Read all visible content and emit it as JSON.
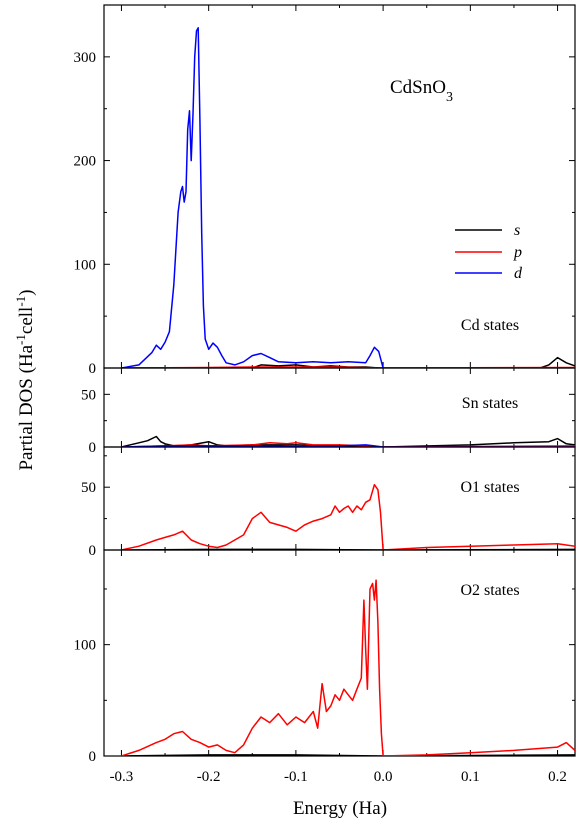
{
  "chart_data": {
    "type": "line",
    "title": "CdSnO3",
    "title_parts": [
      "CdSnO",
      "3"
    ],
    "xlabel": "Energy (Ha)",
    "ylabel": "Partial DOS (Ha-1cell-1)",
    "ylabel_parts": [
      "Partial DOS (Ha",
      "-1",
      "cell",
      "-1",
      ")"
    ],
    "xlim": [
      -0.32,
      0.22
    ],
    "xticks": [
      -0.3,
      -0.2,
      -0.1,
      0.0,
      0.1,
      0.2
    ],
    "xtick_labels": [
      "-0.3",
      "-0.2",
      "-0.1",
      "0.0",
      "0.1",
      "0.2"
    ],
    "legend": {
      "placement": "right, top panel",
      "entries": [
        {
          "label": "s",
          "color": "#000000"
        },
        {
          "label": "p",
          "color": "#ff0000"
        },
        {
          "label": "d",
          "color": "#0000ff"
        }
      ]
    },
    "panels": [
      {
        "label": "Cd states",
        "ylim": [
          0,
          350
        ],
        "yticks": [
          0,
          100,
          200,
          300
        ],
        "ytick_labels": [
          "0",
          "100",
          "200",
          "300"
        ],
        "series": [
          {
            "name": "s",
            "color": "#000000",
            "x": [
              -0.3,
              -0.15,
              -0.14,
              -0.12,
              -0.1,
              -0.08,
              -0.06,
              -0.04,
              -0.02,
              -0.005,
              0.0,
              0.18,
              0.19,
              0.2,
              0.21,
              0.22
            ],
            "y": [
              0,
              0,
              3,
              2,
              3,
              1,
              2,
              1,
              1,
              0,
              0,
              0,
              3,
              10,
              5,
              2
            ]
          },
          {
            "name": "p",
            "color": "#ff0000",
            "x": [
              -0.3,
              -0.2,
              -0.15,
              -0.1,
              -0.05,
              0.0,
              0.22
            ],
            "y": [
              0,
              0.5,
              1,
              1,
              1,
              0,
              0.5
            ]
          },
          {
            "name": "d",
            "color": "#0000ff",
            "x": [
              -0.3,
              -0.28,
              -0.265,
              -0.26,
              -0.255,
              -0.25,
              -0.245,
              -0.24,
              -0.235,
              -0.232,
              -0.23,
              -0.228,
              -0.226,
              -0.224,
              -0.222,
              -0.22,
              -0.218,
              -0.216,
              -0.214,
              -0.212,
              -0.21,
              -0.208,
              -0.206,
              -0.204,
              -0.2,
              -0.195,
              -0.19,
              -0.185,
              -0.18,
              -0.17,
              -0.16,
              -0.15,
              -0.14,
              -0.13,
              -0.12,
              -0.1,
              -0.08,
              -0.06,
              -0.04,
              -0.02,
              -0.015,
              -0.01,
              -0.005,
              0.0
            ],
            "y": [
              0,
              3,
              15,
              22,
              18,
              25,
              35,
              80,
              150,
              170,
              175,
              160,
              170,
              230,
              248,
              200,
              245,
              300,
              325,
              328,
              240,
              130,
              60,
              28,
              18,
              24,
              20,
              12,
              5,
              3,
              6,
              12,
              14,
              10,
              6,
              5,
              6,
              5,
              6,
              5,
              12,
              20,
              16,
              0
            ]
          }
        ]
      },
      {
        "label": "Sn states",
        "ylim": [
          0,
          75
        ],
        "yticks": [
          0,
          50
        ],
        "ytick_labels": [
          "0",
          "50"
        ],
        "series": [
          {
            "name": "s",
            "color": "#000000",
            "x": [
              -0.3,
              -0.28,
              -0.27,
              -0.26,
              -0.255,
              -0.25,
              -0.24,
              -0.22,
              -0.2,
              -0.19,
              -0.18,
              -0.15,
              -0.1,
              -0.05,
              0.0,
              0.1,
              0.15,
              0.19,
              0.2,
              0.21,
              0.22
            ],
            "y": [
              0,
              4,
              6,
              10,
              5,
              3,
              1,
              2,
              5,
              2,
              1,
              2,
              2,
              1,
              0,
              2,
              4,
              5,
              8,
              3,
              2
            ]
          },
          {
            "name": "p",
            "color": "#ff0000",
            "x": [
              -0.3,
              -0.25,
              -0.22,
              -0.2,
              -0.15,
              -0.13,
              -0.11,
              -0.1,
              -0.08,
              -0.05,
              -0.02,
              0.0,
              0.22
            ],
            "y": [
              0,
              1,
              2,
              1,
              2,
              4,
              3,
              4,
              2,
              2,
              1,
              0,
              1
            ]
          },
          {
            "name": "d",
            "color": "#0000ff",
            "x": [
              -0.3,
              -0.25,
              -0.2,
              -0.15,
              -0.1,
              -0.05,
              -0.02,
              -0.01,
              0.0,
              0.22
            ],
            "y": [
              0,
              1,
              1,
              1,
              0.5,
              1,
              2,
              1,
              0,
              0
            ]
          }
        ]
      },
      {
        "label": "O1 states",
        "ylim": [
          0,
          82
        ],
        "yticks": [
          0,
          50
        ],
        "ytick_labels": [
          "0",
          "50"
        ],
        "series": [
          {
            "name": "s",
            "color": "#000000",
            "x": [
              -0.3,
              -0.2,
              -0.1,
              0.0,
              0.22
            ],
            "y": [
              0,
              0.5,
              0.5,
              0,
              0.5
            ]
          },
          {
            "name": "p",
            "color": "#ff0000",
            "x": [
              -0.3,
              -0.28,
              -0.26,
              -0.25,
              -0.24,
              -0.23,
              -0.22,
              -0.21,
              -0.2,
              -0.19,
              -0.18,
              -0.17,
              -0.16,
              -0.15,
              -0.14,
              -0.13,
              -0.12,
              -0.11,
              -0.1,
              -0.09,
              -0.08,
              -0.07,
              -0.06,
              -0.055,
              -0.05,
              -0.045,
              -0.04,
              -0.035,
              -0.03,
              -0.025,
              -0.02,
              -0.015,
              -0.01,
              -0.006,
              -0.003,
              0.0,
              0.05,
              0.1,
              0.15,
              0.2,
              0.22
            ],
            "y": [
              0,
              3,
              8,
              10,
              12,
              15,
              8,
              5,
              3,
              2,
              4,
              8,
              12,
              25,
              30,
              22,
              20,
              18,
              15,
              20,
              23,
              25,
              28,
              35,
              30,
              33,
              35,
              30,
              35,
              32,
              38,
              40,
              52,
              48,
              30,
              0,
              2,
              3,
              4,
              5,
              3
            ]
          }
        ]
      },
      {
        "label": "O2 states",
        "ylim": [
          0,
          185
        ],
        "yticks": [
          0,
          100
        ],
        "ytick_labels": [
          "0",
          "100"
        ],
        "series": [
          {
            "name": "s",
            "color": "#000000",
            "x": [
              -0.3,
              -0.2,
              -0.1,
              0.0,
              0.22
            ],
            "y": [
              0,
              1,
              1,
              0,
              1
            ]
          },
          {
            "name": "p",
            "color": "#ff0000",
            "x": [
              -0.3,
              -0.28,
              -0.26,
              -0.25,
              -0.24,
              -0.23,
              -0.22,
              -0.21,
              -0.2,
              -0.19,
              -0.18,
              -0.17,
              -0.16,
              -0.15,
              -0.14,
              -0.13,
              -0.12,
              -0.11,
              -0.1,
              -0.09,
              -0.08,
              -0.075,
              -0.07,
              -0.065,
              -0.06,
              -0.055,
              -0.05,
              -0.045,
              -0.04,
              -0.035,
              -0.03,
              -0.025,
              -0.022,
              -0.02,
              -0.018,
              -0.015,
              -0.012,
              -0.01,
              -0.008,
              -0.006,
              -0.004,
              -0.002,
              0.0,
              0.05,
              0.1,
              0.15,
              0.2,
              0.21,
              0.22
            ],
            "y": [
              0,
              5,
              12,
              15,
              20,
              22,
              15,
              12,
              8,
              10,
              5,
              3,
              10,
              25,
              35,
              30,
              38,
              28,
              35,
              30,
              40,
              25,
              65,
              40,
              45,
              55,
              50,
              60,
              55,
              50,
              60,
              70,
              140,
              95,
              60,
              150,
              155,
              140,
              158,
              120,
              60,
              20,
              0,
              1,
              3,
              5,
              8,
              12,
              5
            ]
          }
        ]
      }
    ]
  }
}
